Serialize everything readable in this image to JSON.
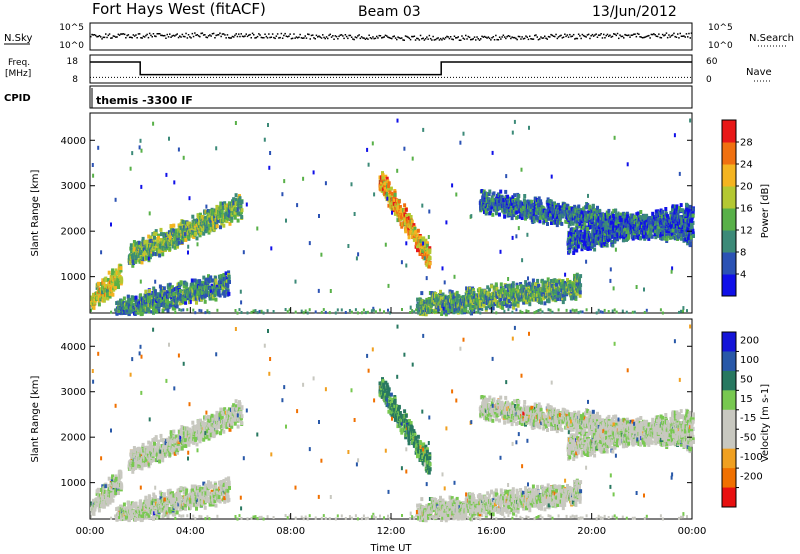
{
  "header": {
    "station": "Fort Hays West (fitACF)",
    "beam": "Beam 03",
    "date": "13/Jun/2012"
  },
  "params": {
    "nsky_label": "N.Sky",
    "nsearch_label": "N.Search",
    "noise_ticks": [
      "10^5",
      "10^0"
    ],
    "freq_label": "Freq.",
    "freq_unit": "[MHz]",
    "freq_ticks": [
      "18",
      "8"
    ],
    "nave_ticks": [
      "60",
      "0"
    ],
    "nave_label": "Nave",
    "cpid_label": "CPID",
    "cpid_text": "themis -3300 IF"
  },
  "colorbars": {
    "power": {
      "label": "Power [dB]",
      "ticks": [
        "28",
        "24",
        "20",
        "16",
        "12",
        "8",
        "4"
      ],
      "colors": [
        "#1010e8",
        "#2b52b4",
        "#3c8a78",
        "#58b048",
        "#b4c832",
        "#f4b420",
        "#f07010",
        "#e81818"
      ]
    },
    "velocity": {
      "label": "Velocity [m s-1]",
      "ticks": [
        "200",
        "100",
        "50",
        "15",
        "-15",
        "-50",
        "-100",
        "-200"
      ],
      "colors": [
        "#1414d8",
        "#2858a8",
        "#287860",
        "#78c850",
        "#c8c8c0",
        "#c8c8c0",
        "#f0a020",
        "#f07000",
        "#e81010"
      ]
    }
  },
  "axes": {
    "ylabel": "Slant Range [km]",
    "xlabel": "Time UT",
    "yticks": [
      "1000",
      "2000",
      "3000",
      "4000"
    ],
    "xticks": [
      "00:00",
      "04:00",
      "08:00",
      "12:00",
      "16:00",
      "20:00",
      "00:00"
    ]
  },
  "chart_data": {
    "type": "heatmap",
    "x_unit": "hours UT",
    "xlim": [
      0,
      24
    ],
    "ylim": [
      200,
      4600
    ],
    "frequency_MHz": [
      {
        "start": 0,
        "end": 2,
        "value": 15.5
      },
      {
        "start": 2,
        "end": 14,
        "value": 11
      },
      {
        "start": 14,
        "end": 24,
        "value": 15.5
      }
    ],
    "nave_level": 12,
    "scatter_bands": [
      {
        "t0": 1.5,
        "t1": 6.0,
        "r0": 1500,
        "r1": 2600,
        "pw": 14,
        "vel": 0
      },
      {
        "t0": 0.0,
        "t1": 1.2,
        "r0": 500,
        "r1": 1100,
        "pw": 18,
        "vel": 0
      },
      {
        "t0": 1.0,
        "t1": 5.5,
        "r0": 300,
        "r1": 900,
        "pw": 10,
        "vel": 0
      },
      {
        "t0": 11.5,
        "t1": 13.5,
        "r0": 3200,
        "r1": 1400,
        "pw": 22,
        "vel": 60
      },
      {
        "t0": 13.0,
        "t1": 19.5,
        "r0": 400,
        "r1": 800,
        "pw": 12,
        "vel": 0
      },
      {
        "t0": 15.5,
        "t1": 24.0,
        "r0": 2700,
        "r1": 2000,
        "pw": 8,
        "vel": 0
      },
      {
        "t0": 19.0,
        "t1": 24.0,
        "r0": 1800,
        "r1": 2400,
        "pw": 6,
        "vel": 0
      }
    ]
  }
}
